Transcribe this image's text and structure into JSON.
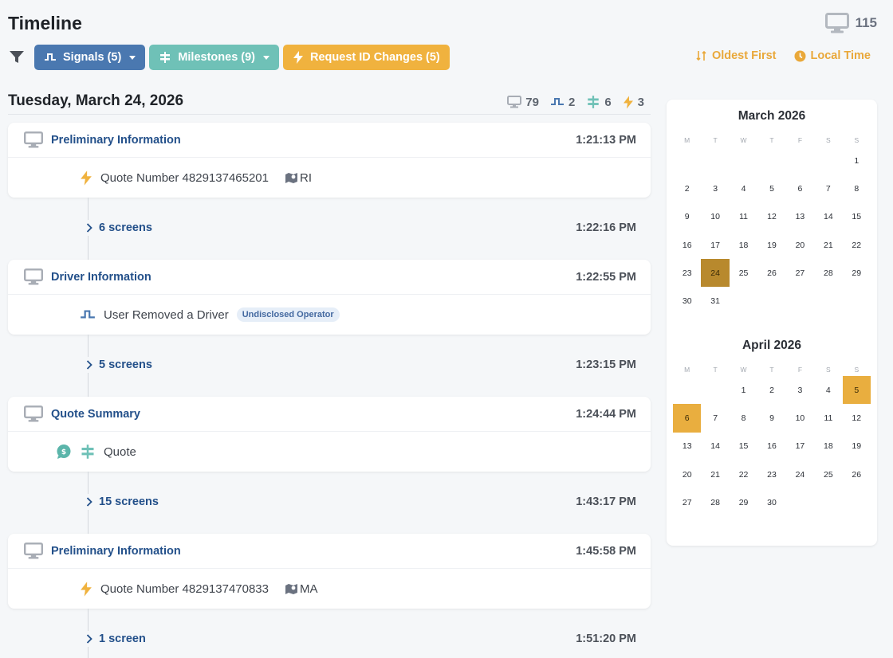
{
  "header": {
    "title": "Timeline",
    "total_count": "115"
  },
  "filters": {
    "signals_label": "Signals (5)",
    "milestones_label": "Milestones (9)",
    "request_label": "Request ID Changes (5)"
  },
  "sort": {
    "order_label": "Oldest First",
    "time_label": "Local Time"
  },
  "colors": {
    "blue": "#4a78b0",
    "teal": "#6fc1b7",
    "orange": "#f0b23e",
    "link": "#23508a"
  },
  "day": {
    "title": "Tuesday, March 24, 2026",
    "counts": {
      "screens": "79",
      "signals": "2",
      "milestones": "6",
      "requests": "3"
    }
  },
  "timeline": {
    "cards": [
      {
        "title": "Preliminary Information",
        "time": "1:21:13 PM",
        "event_icon": "bolt-icon",
        "text": "Quote Number 4829137465201",
        "location": "RI"
      },
      {
        "title": "Driver Information",
        "time": "1:22:55 PM",
        "event_icon": "signal-icon",
        "text": "User Removed a Driver",
        "badge": "Undisclosed Operator"
      },
      {
        "title": "Quote Summary",
        "time": "1:24:44 PM",
        "event_icon": "milestone-icon",
        "text": "Quote"
      },
      {
        "title": "Preliminary Information",
        "time": "1:45:58 PM",
        "event_icon": "bolt-icon",
        "text": "Quote Number 4829137470833",
        "location": "MA"
      }
    ],
    "gaps": [
      {
        "label": "6 screens",
        "time": "1:22:16 PM"
      },
      {
        "label": "5 screens",
        "time": "1:23:15 PM"
      },
      {
        "label": "15 screens",
        "time": "1:43:17 PM"
      },
      {
        "label": "1 screen",
        "time": "1:51:20 PM"
      }
    ]
  },
  "calendar": {
    "weekdays": [
      "M",
      "T",
      "W",
      "T",
      "F",
      "S",
      "S"
    ],
    "months": [
      {
        "title": "March 2026",
        "offset": 6,
        "days": 31,
        "selected": [
          24
        ],
        "selected_style": "dark"
      },
      {
        "title": "April 2026",
        "offset": 2,
        "days": 30,
        "selected": [
          5,
          6
        ],
        "selected_style": "light"
      }
    ]
  }
}
